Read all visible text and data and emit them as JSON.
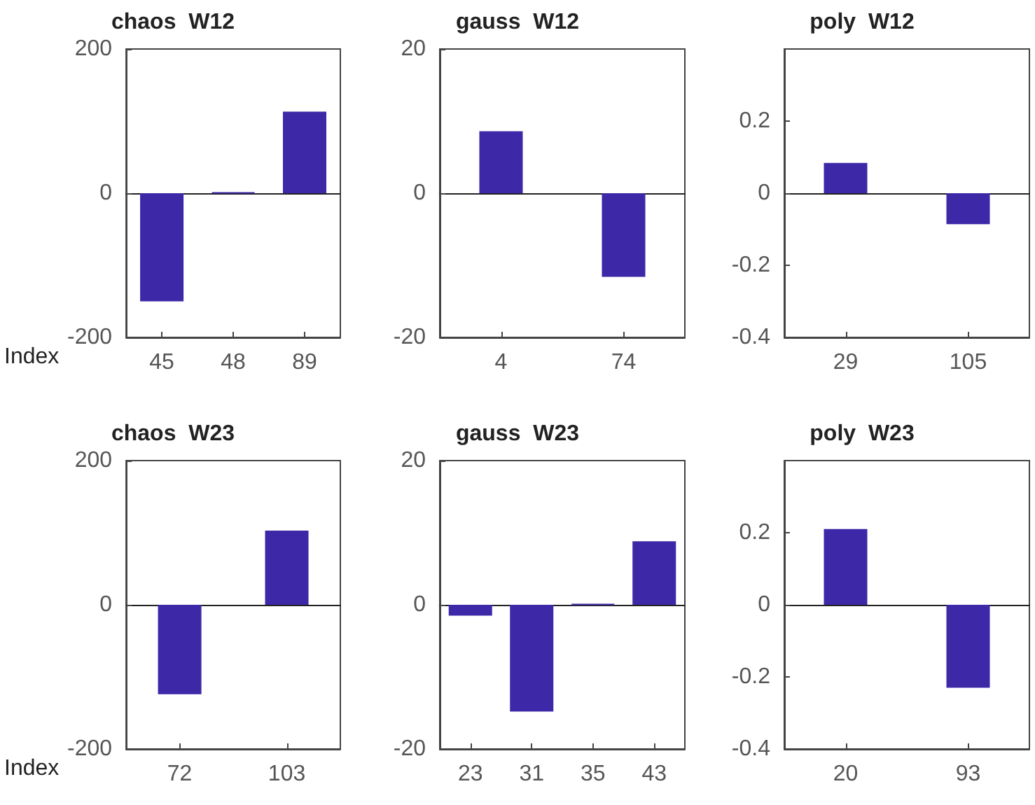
{
  "chart_data": [
    {
      "type": "bar",
      "title": "chaos  W12",
      "xlabel": "Index",
      "categories": [
        "45",
        "48",
        "89"
      ],
      "values": [
        -150,
        1,
        113
      ],
      "color": "#3d28a8",
      "ylim": [
        -200,
        200
      ],
      "yticks": [
        -200,
        0,
        200
      ]
    },
    {
      "type": "bar",
      "title": "gauss  W12",
      "categories": [
        "4",
        "74"
      ],
      "values": [
        8.6,
        -11.6
      ],
      "color": "#3d28a8",
      "ylim": [
        -20,
        20
      ],
      "yticks": [
        -20,
        0,
        20
      ]
    },
    {
      "type": "bar",
      "title": "poly  W12",
      "categories": [
        "29",
        "105"
      ],
      "values": [
        0.084,
        -0.086
      ],
      "color": "#3d28a8",
      "ylim": [
        -0.4,
        0.4
      ],
      "yticks": [
        -0.4,
        -0.2,
        0,
        0.2
      ]
    },
    {
      "type": "bar",
      "title": "chaos  W23",
      "xlabel": "Index",
      "categories": [
        "72",
        "103"
      ],
      "values": [
        -124,
        103
      ],
      "color": "#3d28a8",
      "ylim": [
        -200,
        200
      ],
      "yticks": [
        -200,
        0,
        200
      ]
    },
    {
      "type": "bar",
      "title": "gauss  W23",
      "categories": [
        "23",
        "31",
        "35",
        "43"
      ],
      "values": [
        -1.5,
        -14.8,
        0.1,
        8.8
      ],
      "color": "#3d28a8",
      "ylim": [
        -20,
        20
      ],
      "yticks": [
        -20,
        0,
        20
      ]
    },
    {
      "type": "bar",
      "title": "poly  W23",
      "categories": [
        "20",
        "93"
      ],
      "values": [
        0.21,
        -0.23
      ],
      "color": "#3d28a8",
      "ylim": [
        -0.4,
        0.4
      ],
      "yticks": [
        -0.4,
        -0.2,
        0,
        0.2
      ]
    }
  ]
}
